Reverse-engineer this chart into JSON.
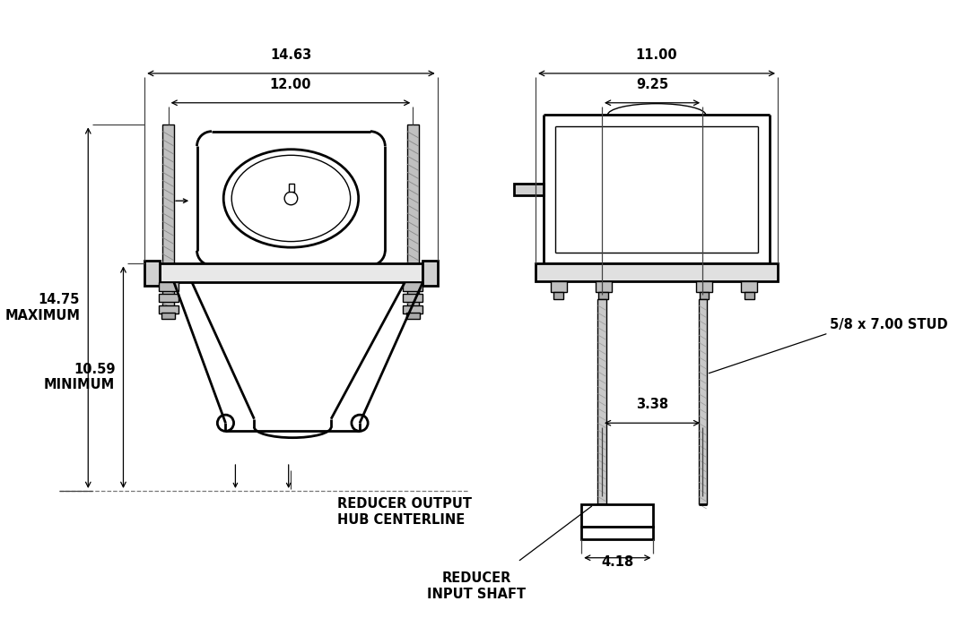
{
  "bg_color": "#ffffff",
  "line_color": "#000000",
  "annotations": {
    "dim_14_63": "14.63",
    "dim_12_00": "12.00",
    "dim_11_00": "11.00",
    "dim_9_25": "9.25",
    "dim_14_75_max": "14.75\nMAXIMUM",
    "dim_10_59_min": "10.59\nMINIMUM",
    "dim_3_38": "3.38",
    "dim_4_18": "4.18",
    "stud_label": "5/8 x 7.00 STUD",
    "centerline_label": "REDUCER OUTPUT\nHUB CENTERLINE",
    "input_shaft_label": "REDUCER\nINPUT SHAFT"
  },
  "lw_main": 2.0,
  "lw_thin": 1.0,
  "lw_dim": 0.9,
  "font_dim": 10.5
}
